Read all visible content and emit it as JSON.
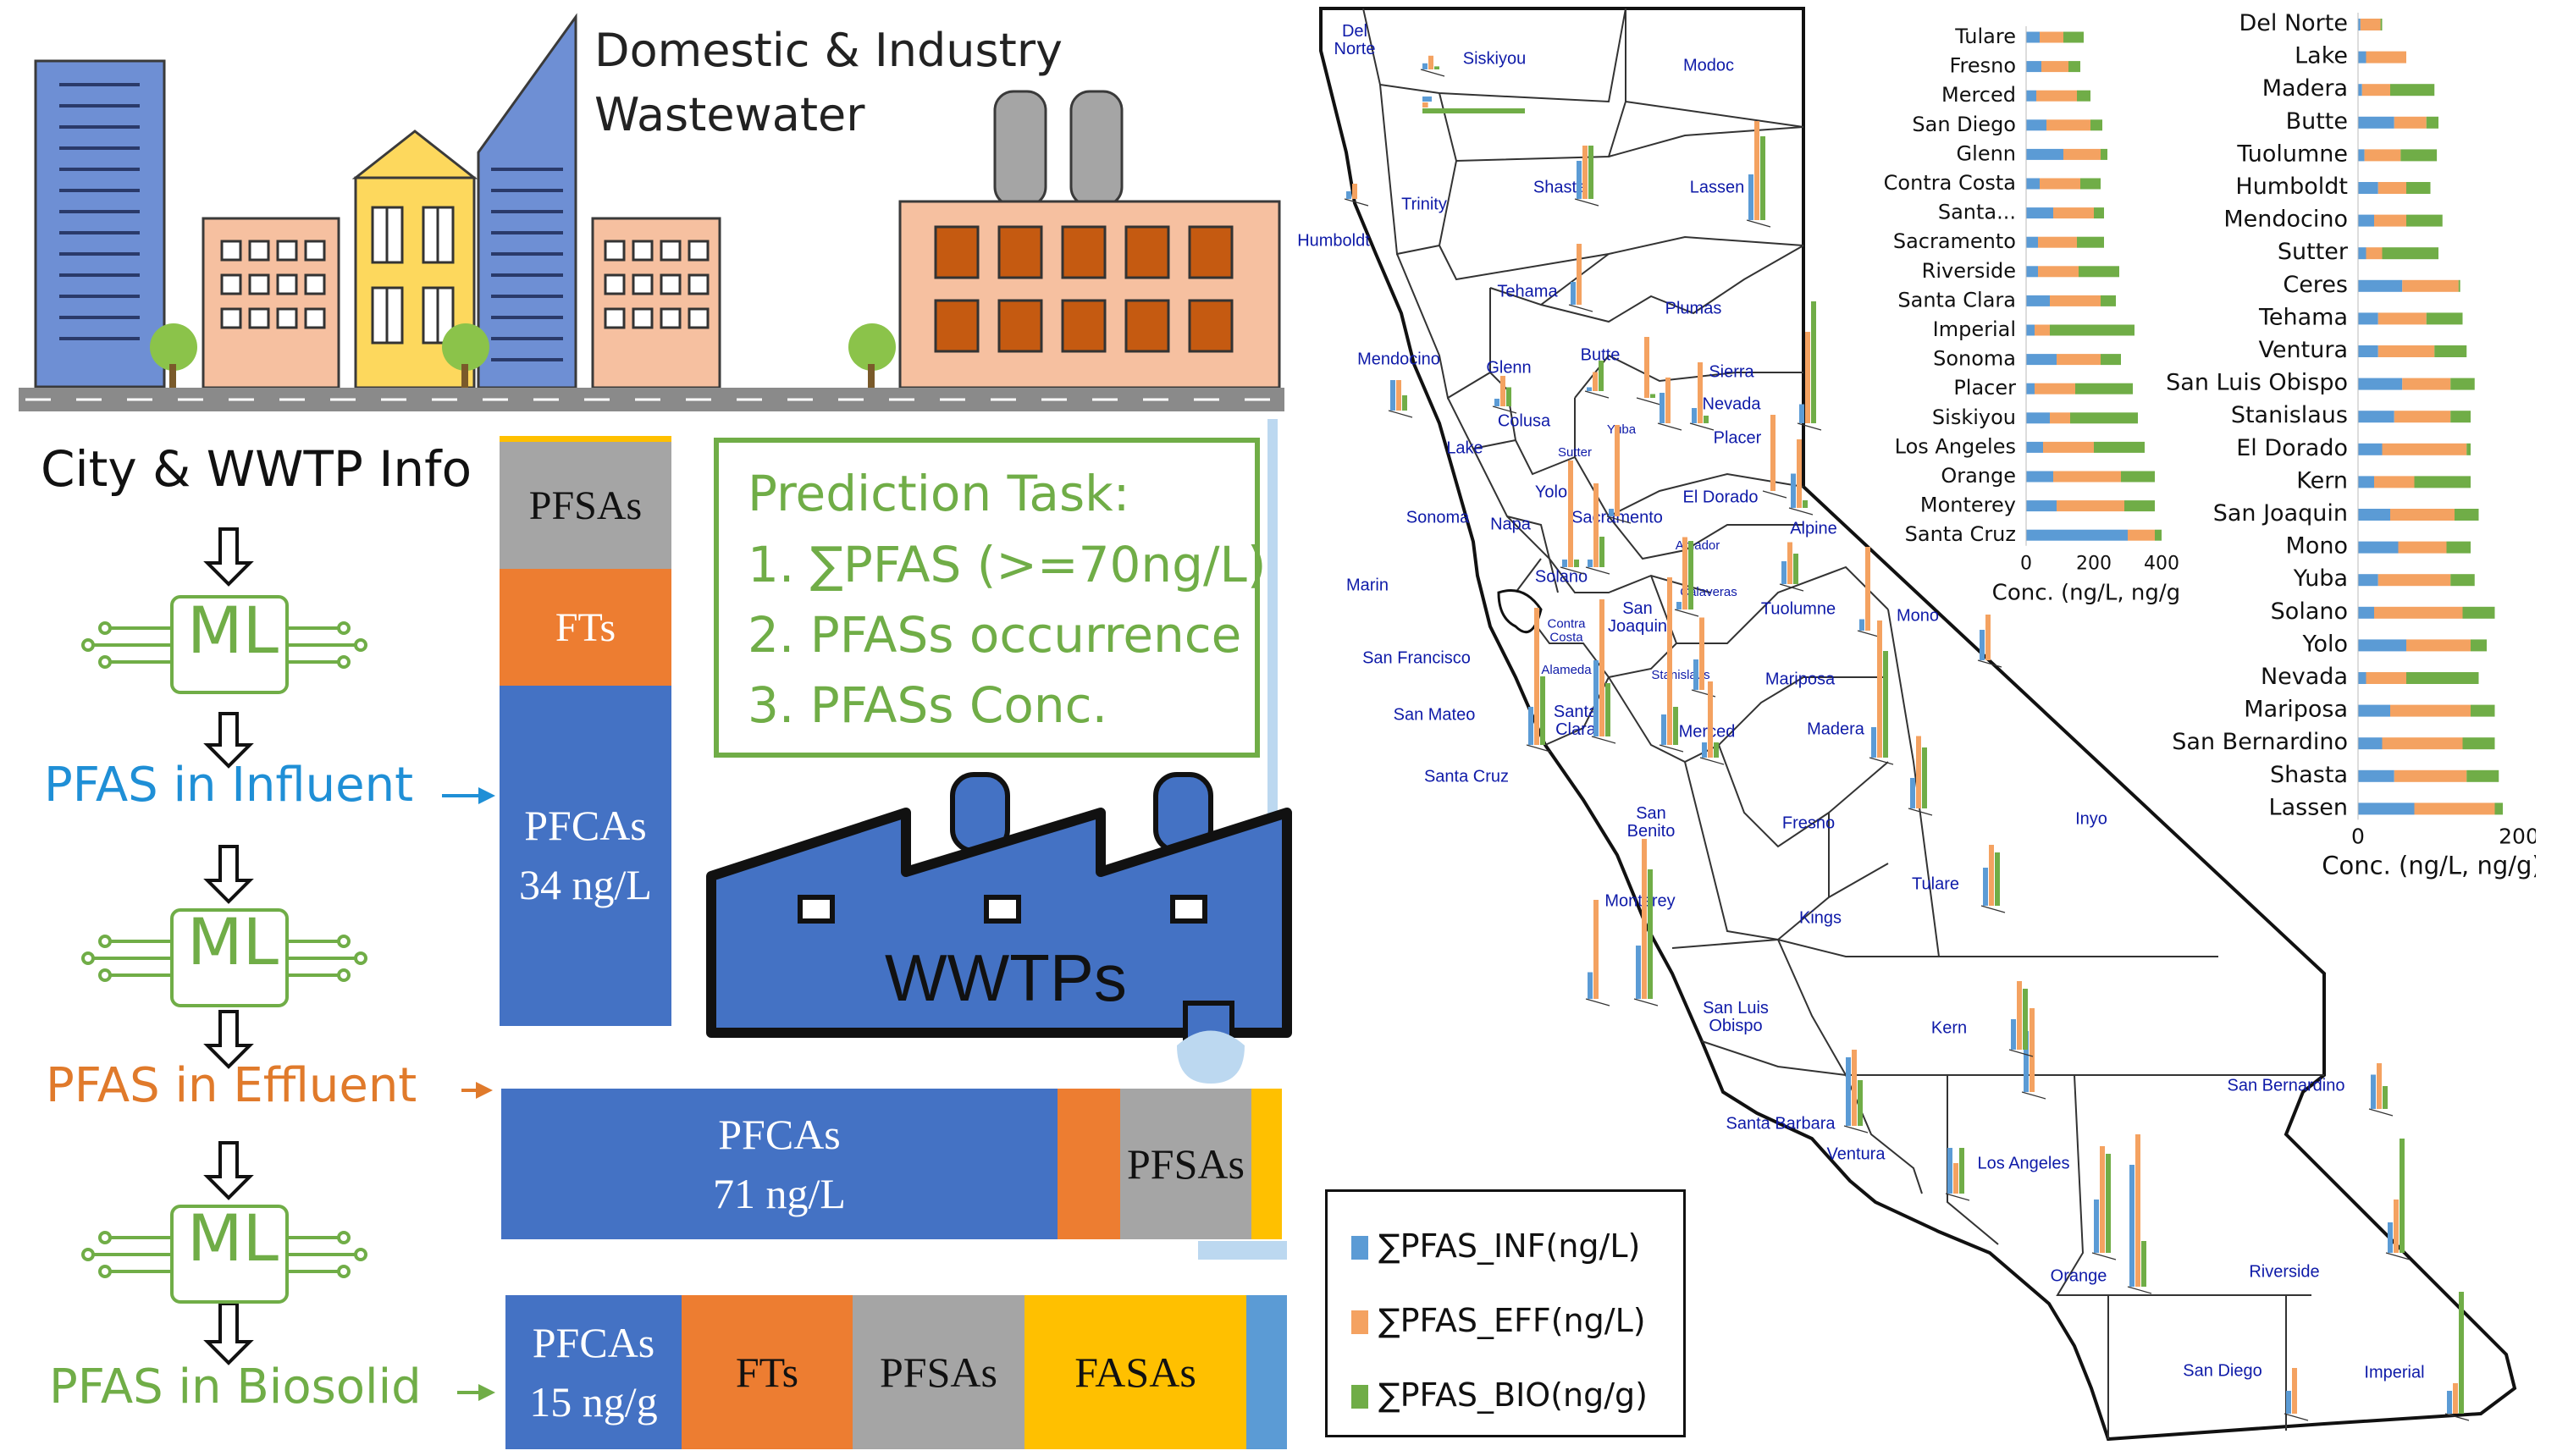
{
  "colors": {
    "pfca": "#4472c4",
    "ft": "#ed7d31",
    "pfsa": "#a5a5a5",
    "fasa": "#ffc000",
    "other": "#5b9bd5",
    "inf": "#5b9bd5",
    "eff": "#f4a261",
    "bio": "#70ad47",
    "ml_green": "#70ad47",
    "influent_text": "#1f8fd6",
    "effluent_text": "#e07a2b",
    "biosolid_text": "#70ad47",
    "county_label": "#0e1aa8"
  },
  "header": {
    "wastewater_line1": "Domestic & Industry",
    "wastewater_line2": "Wastewater"
  },
  "flow": {
    "city_info": "City & WWTP Info",
    "ml_label": "ML",
    "influent": "PFAS in Influent",
    "effluent": "PFAS in Effluent",
    "biosolid": "PFAS in Biosolid",
    "wwtp_label": "WWTPs"
  },
  "prediction": {
    "title": "Prediction Task:",
    "items": [
      "1. ∑PFAS (>=70ng/L)",
      "2. PFASs occurrence",
      "3. PFASs Conc."
    ]
  },
  "composition": {
    "influent": {
      "pfsa": "PFSAs",
      "ft": "FTs",
      "pfca_name": "PFCAs",
      "pfca_conc": "34 ng/L",
      "fractions": {
        "fasa": 0.01,
        "pfsa": 0.22,
        "ft": 0.19,
        "pfca": 0.58
      }
    },
    "effluent": {
      "pfca_name": "PFCAs",
      "pfca_conc": "71 ng/L",
      "pfsa": "PFSAs",
      "fractions": {
        "pfca": 0.71,
        "ft": 0.08,
        "pfsa": 0.17,
        "fasa": 0.04
      }
    },
    "biosolid": {
      "pfca_name": "PFCAs",
      "pfca_conc": "15 ng/g",
      "ft": "FTs",
      "pfsa": "PFSAs",
      "fasa": "FASAs",
      "fractions": {
        "pfca": 0.22,
        "ft": 0.22,
        "pfsa": 0.22,
        "fasa": 0.28,
        "other": 0.05
      }
    }
  },
  "legend": {
    "inf": "∑PFAS_INF(ng/L)",
    "eff": "∑PFAS_EFF(ng/L)",
    "bio": "∑PFAS_BIO(ng/g)"
  },
  "map": {
    "counties": [
      "Del Norte",
      "Siskiyou",
      "Modoc",
      "Humboldt",
      "Trinity",
      "Shasta",
      "Lassen",
      "Tehama",
      "Plumas",
      "Mendocino",
      "Glenn",
      "Butte",
      "Sierra",
      "Colusa",
      "Nevada",
      "Lake",
      "Sutter",
      "Yuba",
      "Placer",
      "Sonoma",
      "Napa",
      "Yolo",
      "Sacramento",
      "El Dorado",
      "Alpine",
      "Amador",
      "Marin",
      "Solano",
      "Calaveras",
      "Contra Costa",
      "San Joaquin",
      "Tuolumne",
      "Mono",
      "San Francisco",
      "Alameda",
      "Stanislaus",
      "Mariposa",
      "San Mateo",
      "Santa Clara",
      "Merced",
      "Madera",
      "Santa Cruz",
      "San Benito",
      "Fresno",
      "Inyo",
      "Tulare",
      "Monterey",
      "Kings",
      "San Luis Obispo",
      "Kern",
      "Santa Barbara",
      "Ventura",
      "Los Angeles",
      "San Bernardino",
      "Orange",
      "Riverside",
      "San Diego",
      "Imperial"
    ]
  },
  "chart_data": [
    {
      "type": "bar",
      "orientation": "horizontal",
      "stacked": true,
      "categories": [
        "Tulare",
        "Fresno",
        "Merced",
        "San Diego",
        "Glenn",
        "Contra Costa",
        "Santa...",
        "Sacramento",
        "Riverside",
        "Santa Clara",
        "Imperial",
        "Sonoma",
        "Placer",
        "Siskiyou",
        "Los Angeles",
        "Orange",
        "Monterey",
        "Santa Cruz"
      ],
      "series": [
        {
          "name": "∑PFAS_INF(ng/L)",
          "values": [
            40,
            45,
            30,
            60,
            110,
            40,
            80,
            35,
            35,
            70,
            25,
            90,
            25,
            70,
            50,
            80,
            90,
            300
          ]
        },
        {
          "name": "∑PFAS_EFF(ng/L)",
          "values": [
            70,
            80,
            120,
            130,
            110,
            120,
            120,
            115,
            120,
            150,
            45,
            130,
            120,
            60,
            150,
            200,
            200,
            80
          ]
        },
        {
          "name": "∑PFAS_BIO(ng/g)",
          "values": [
            60,
            35,
            40,
            35,
            20,
            60,
            30,
            80,
            120,
            45,
            250,
            60,
            170,
            200,
            150,
            100,
            90,
            20
          ]
        }
      ],
      "xlabel": "Conc. (ng/L, ng/g)",
      "xticks": [
        0,
        200,
        400
      ],
      "xlim": [
        0,
        420
      ]
    },
    {
      "type": "bar",
      "orientation": "horizontal",
      "stacked": true,
      "categories": [
        "Del Norte",
        "Lake",
        "Madera",
        "Butte",
        "Tuolumne",
        "Humboldt",
        "Mendocino",
        "Sutter",
        "Ceres",
        "Tehama",
        "Ventura",
        "San Luis Obispo",
        "Stanislaus",
        "El Dorado",
        "Kern",
        "San Joaquin",
        "Mono",
        "Yuba",
        "Solano",
        "Yolo",
        "Nevada",
        "Mariposa",
        "San Bernardino",
        "Shasta",
        "Lassen"
      ],
      "series": [
        {
          "name": "∑PFAS_INF(ng/L)",
          "values": [
            3,
            10,
            5,
            45,
            8,
            25,
            20,
            10,
            55,
            25,
            25,
            55,
            45,
            30,
            20,
            40,
            50,
            25,
            20,
            60,
            10,
            40,
            30,
            45,
            70
          ]
        },
        {
          "name": "∑PFAS_EFF(ng/L)",
          "values": [
            25,
            50,
            35,
            40,
            45,
            35,
            40,
            20,
            70,
            60,
            70,
            60,
            70,
            105,
            50,
            80,
            60,
            90,
            110,
            80,
            50,
            100,
            100,
            90,
            100
          ]
        },
        {
          "name": "∑PFAS_BIO(ng/g)",
          "values": [
            2,
            0,
            55,
            15,
            45,
            30,
            45,
            70,
            2,
            45,
            40,
            30,
            25,
            5,
            70,
            30,
            30,
            30,
            40,
            20,
            90,
            30,
            40,
            40,
            10
          ]
        }
      ],
      "xlabel": "Conc. (ng/L, ng/g)",
      "xticks": [
        0,
        200
      ],
      "xlim": [
        0,
        200
      ]
    }
  ]
}
